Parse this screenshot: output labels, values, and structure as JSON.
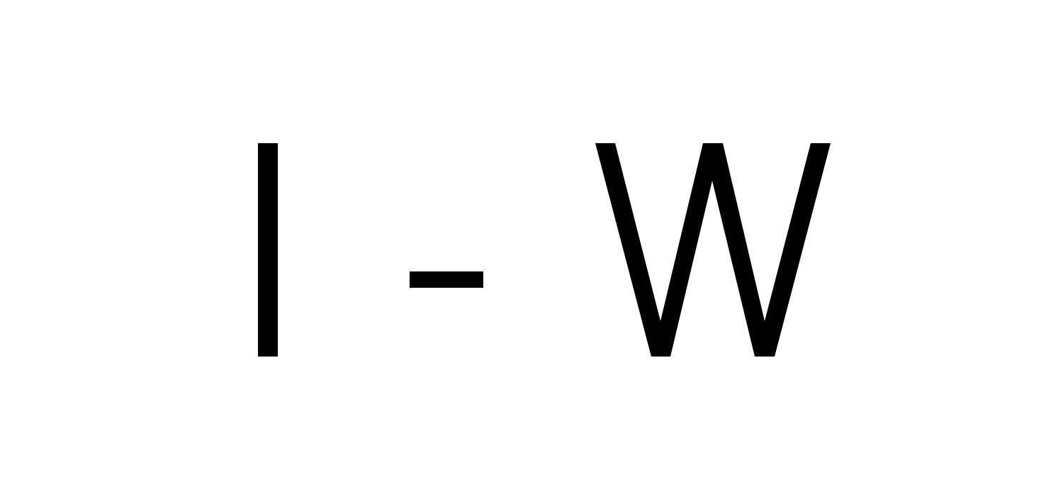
{
  "text": {
    "letter_left": "I",
    "separator": "-",
    "letter_right": "W",
    "full": "I - W"
  },
  "colors": {
    "background": "#ffffff",
    "foreground": "#000000"
  }
}
